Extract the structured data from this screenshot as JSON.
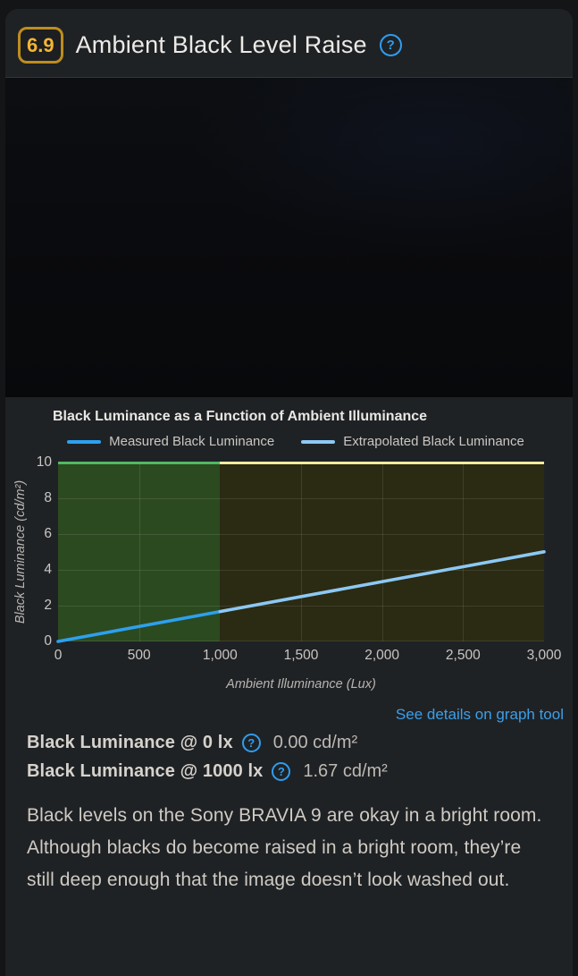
{
  "header": {
    "score": "6.9",
    "title": "Ambient Black Level Raise"
  },
  "icons": {
    "help": "?"
  },
  "links": {
    "graph_tool": "See details on graph tool"
  },
  "measurements": [
    {
      "label": "Black Luminance @ 0 lx",
      "value": "0.00 cd/m²"
    },
    {
      "label": "Black Luminance @ 1000 lx",
      "value": "1.67 cd/m²"
    }
  ],
  "description": "Black levels on the Sony BRAVIA 9 are okay in a bright room. Although blacks do become raised in a bright room, they’re still deep enough that the image doesn’t look washed out.",
  "colors": {
    "score_gold": "#f2b535",
    "accent_blue": "#2f9df0",
    "link_blue": "#3d9fe8"
  },
  "chart_data": {
    "type": "line",
    "title": "Black Luminance as a Function of Ambient Illuminance",
    "xlabel": "Ambient Illuminance (Lux)",
    "ylabel": "Black Luminance (cd/m²)",
    "xlim": [
      0,
      3000
    ],
    "ylim": [
      0,
      10
    ],
    "x_ticks": [
      "0",
      "500",
      "1,000",
      "1,500",
      "2,000",
      "2,500",
      "3,000"
    ],
    "y_ticks": [
      "0",
      "2",
      "4",
      "6",
      "8",
      "10"
    ],
    "grid": true,
    "legend_position": "top",
    "series": [
      {
        "name": "Measured Black Luminance",
        "x": [
          0,
          1000
        ],
        "y": [
          0,
          1.67
        ],
        "color": "#2da0ef"
      },
      {
        "name": "Extrapolated Black Luminance",
        "x": [
          1000,
          3000
        ],
        "y": [
          1.67,
          5.01
        ],
        "color": "#8cc8f4"
      }
    ],
    "regions": [
      {
        "name": "measured",
        "x": [
          0,
          1000
        ],
        "fill": "#2c4a20",
        "top_border": "#4fba63"
      },
      {
        "name": "extrapolated",
        "x": [
          1000,
          3000
        ],
        "fill": "#2b2a12",
        "top_border": "#f1ec9e"
      }
    ]
  }
}
